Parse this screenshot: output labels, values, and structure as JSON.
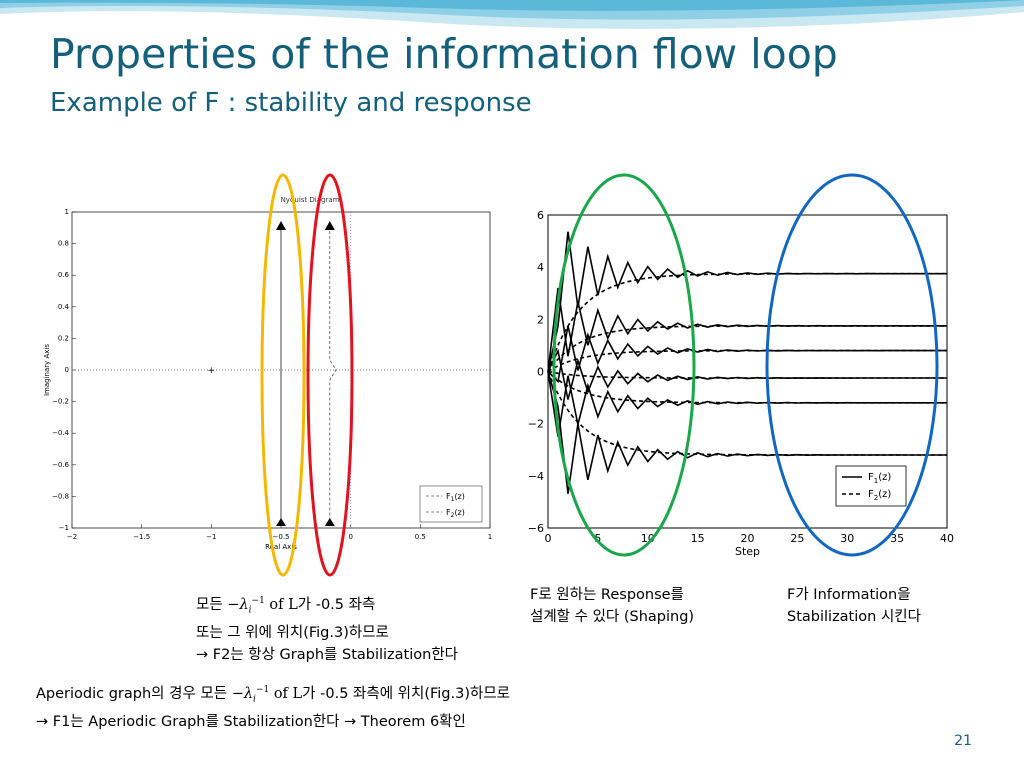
{
  "slide": {
    "title": "Properties of the information flow loop",
    "subtitle": "Example of F : stability and response",
    "page_number": "21"
  },
  "nyquist": {
    "title": "Nyquist Diagram",
    "xlabel": "Real Axis",
    "ylabel": "Imaginary Axis",
    "xticks": [
      "−2",
      "−1.5",
      "−1",
      "−0.5",
      "0",
      "0.5",
      "1"
    ],
    "yticks": [
      "1",
      "0.8",
      "0.6",
      "0.4",
      "0.2",
      "0",
      "−0.2",
      "−0.4",
      "−0.6",
      "−0.8",
      "−1"
    ],
    "legend": [
      "F",
      "(z)",
      "F",
      "(z)"
    ],
    "legend_sub": [
      "1",
      "2"
    ]
  },
  "step": {
    "xlabel": "Step",
    "xticks": [
      "0",
      "5",
      "10",
      "15",
      "20",
      "25",
      "30",
      "35",
      "40"
    ],
    "yticks": [
      "6",
      "4",
      "2",
      "0",
      "−2",
      "−4",
      "−6"
    ],
    "legend": [
      "F",
      "(z)",
      "F",
      "(z)"
    ],
    "legend_sub": [
      "1",
      "2"
    ]
  },
  "chart_data": [
    {
      "type": "line",
      "title": "Nyquist Diagram",
      "xlabel": "Real Axis",
      "ylabel": "Imaginary Axis",
      "xlim": [
        -2,
        1
      ],
      "ylim": [
        -1,
        1
      ],
      "series": [
        {
          "name": "F1(z)",
          "points": [
            [
              -0.5,
              -1
            ],
            [
              -0.5,
              1
            ]
          ]
        },
        {
          "name": "F2(z)",
          "points": [
            [
              -0.15,
              -1
            ],
            [
              -0.15,
              -0.05
            ],
            [
              -0.1,
              0
            ],
            [
              -0.15,
              0.05
            ],
            [
              -0.15,
              1
            ]
          ]
        }
      ]
    },
    {
      "type": "line",
      "xlabel": "Step",
      "xlim": [
        0,
        40
      ],
      "ylim": [
        -6,
        6
      ],
      "series": [
        {
          "name": "F1(z)",
          "values": [
            3.75,
            1.75,
            0.8,
            -0.25,
            -1.2,
            -3.2
          ]
        },
        {
          "name": "F2(z)",
          "values": [
            3.75,
            1.75,
            0.8,
            -0.25,
            -1.2,
            -3.2
          ]
        }
      ]
    }
  ],
  "annotations": {
    "f_response_1": "F로 원하는 Response를",
    "f_response_2": "설계할 수 있다 (Shaping)",
    "f_info_1": "F가 Information을",
    "f_info_2": "Stabilization 시킨다",
    "left1_pre": "모든",
    "lambda_sym": "−λ",
    "lambda_sub": "i",
    "lambda_sup": "−1",
    "of_L": "of L",
    "left1_post": "가 -0.5 좌측",
    "left2": "또는 그 위에 위치(Fig.3)하므로",
    "left3": "→ F2는 항상 Graph를 Stabilization한다",
    "bottom1_pre": "Aperiodic graph의 경우   모든",
    "bottom1_post": "가 -0.5 좌측에 위치(Fig.3)하므로",
    "bottom2": "→ F1는 Aperiodic Graph를 Stabilization한다 → Theorem 6확인"
  },
  "colors": {
    "title": "#14607a",
    "yellow_ellipse": "#f5b800",
    "red_ellipse": "#e0141e",
    "green_ellipse": "#1aa64a",
    "blue_ellipse": "#1268c0"
  }
}
